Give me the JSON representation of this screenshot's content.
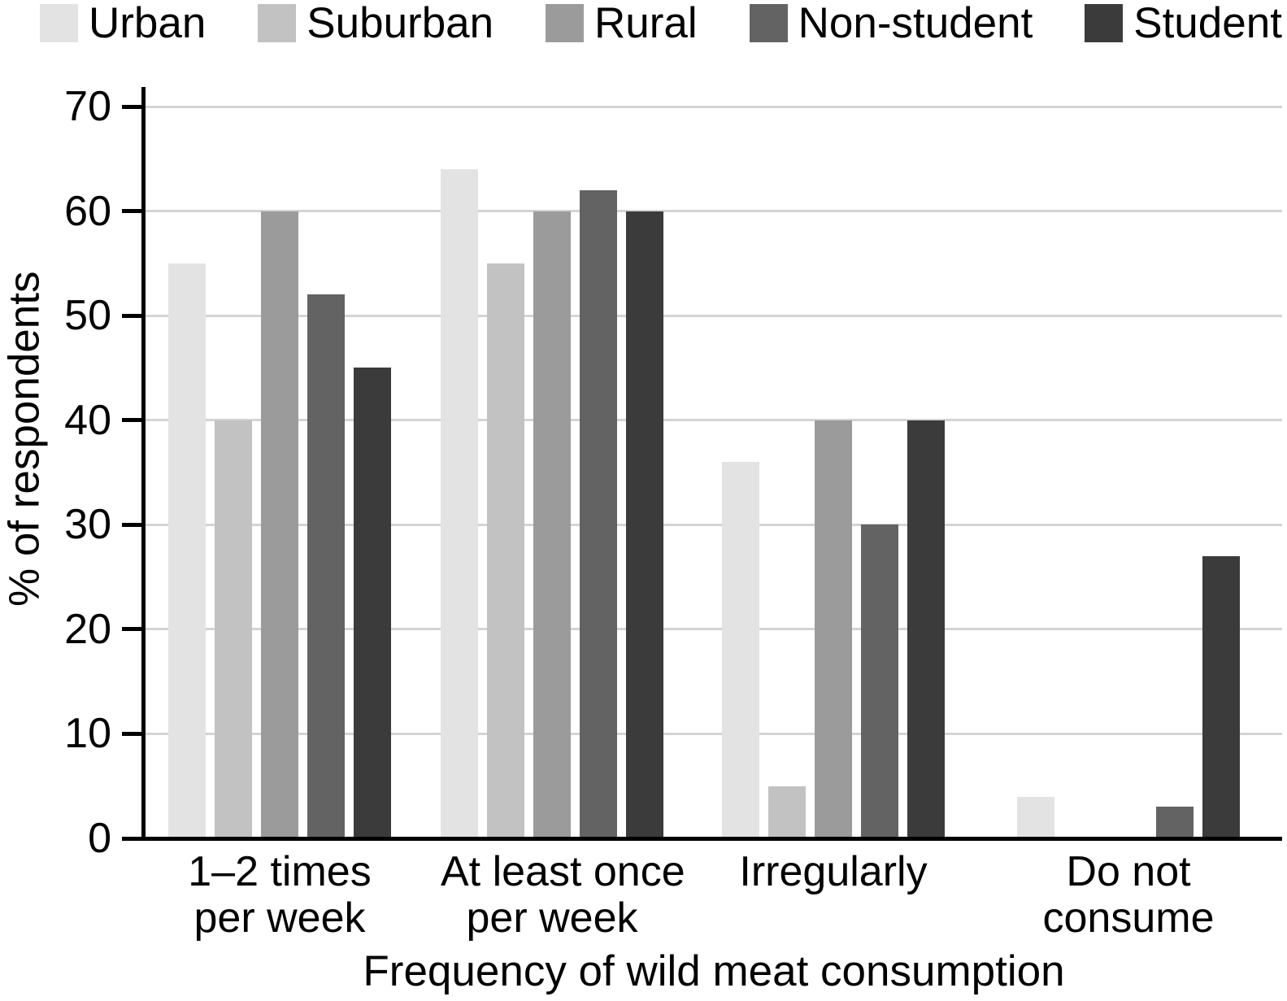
{
  "chart_data": {
    "type": "bar",
    "title": "",
    "categories": [
      "1–2 times per week",
      "At least once per week",
      "Irregularly",
      "Do not consume"
    ],
    "category_lines": [
      [
        "1–2 times",
        "per week"
      ],
      [
        "At least once",
        "per week"
      ],
      [
        "Irregularly"
      ],
      [
        "Do not",
        "consume"
      ]
    ],
    "series": [
      {
        "name": "Urban",
        "color": "#e3e3e3",
        "values": [
          55,
          64,
          36,
          4
        ]
      },
      {
        "name": "Suburban",
        "color": "#c2c2c2",
        "values": [
          40,
          55,
          5,
          0
        ]
      },
      {
        "name": "Rural",
        "color": "#9b9b9b",
        "values": [
          60,
          60,
          40,
          0
        ]
      },
      {
        "name": "Non-student",
        "color": "#636363",
        "values": [
          52,
          62,
          30,
          3
        ]
      },
      {
        "name": "Student",
        "color": "#3b3b3b",
        "values": [
          45,
          60,
          40,
          27
        ]
      }
    ],
    "xlabel": "Frequency of wild meat consumption",
    "ylabel": "% of respondents",
    "ylim": [
      0,
      70
    ],
    "yticks": [
      0,
      10,
      20,
      30,
      40,
      50,
      60,
      70
    ],
    "grid": "horizontal",
    "legend_position": "top",
    "gridline_color": "#d4d4d4",
    "axis_color": "#000000",
    "background": "#ffffff"
  }
}
